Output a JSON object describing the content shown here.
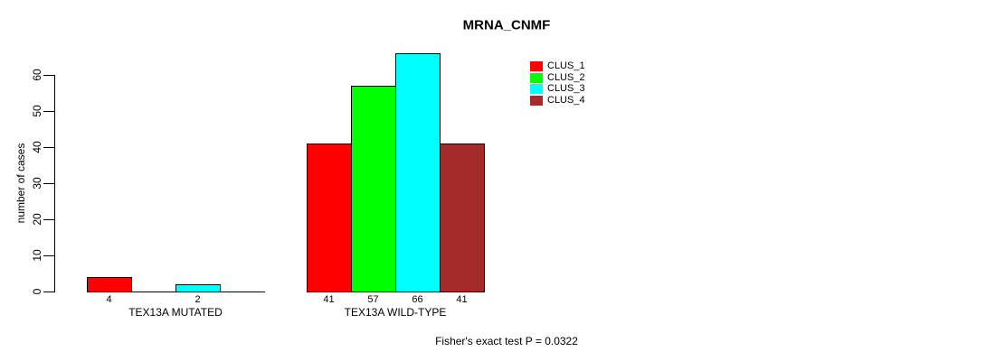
{
  "chart_data": {
    "type": "bar",
    "title": "MRNA_CNMF",
    "ylabel": "number of cases",
    "xlabel": "",
    "ylim": [
      0,
      66
    ],
    "yticks": [
      0,
      10,
      20,
      30,
      40,
      50,
      60
    ],
    "grid": false,
    "legend_position": "top-right",
    "categories": [
      "TEX13A MUTATED",
      "TEX13A WILD-TYPE"
    ],
    "series": [
      {
        "name": "CLUS_1",
        "color": "#ff0000",
        "values": [
          4,
          41
        ]
      },
      {
        "name": "CLUS_2",
        "color": "#00ff00",
        "values": [
          0,
          57
        ]
      },
      {
        "name": "CLUS_3",
        "color": "#00ffff",
        "values": [
          2,
          66
        ]
      },
      {
        "name": "CLUS_4",
        "color": "#a52a2a",
        "values": [
          0,
          41
        ]
      }
    ],
    "bar_value_labels": [
      "4",
      "2",
      "41",
      "57",
      "66",
      "41"
    ],
    "show_zero_value_labels": false,
    "annotation": "Fisher's exact test P = 0.0322"
  },
  "colors": {
    "background": "#ffffff",
    "axis": "#000000",
    "text": "#000000"
  }
}
